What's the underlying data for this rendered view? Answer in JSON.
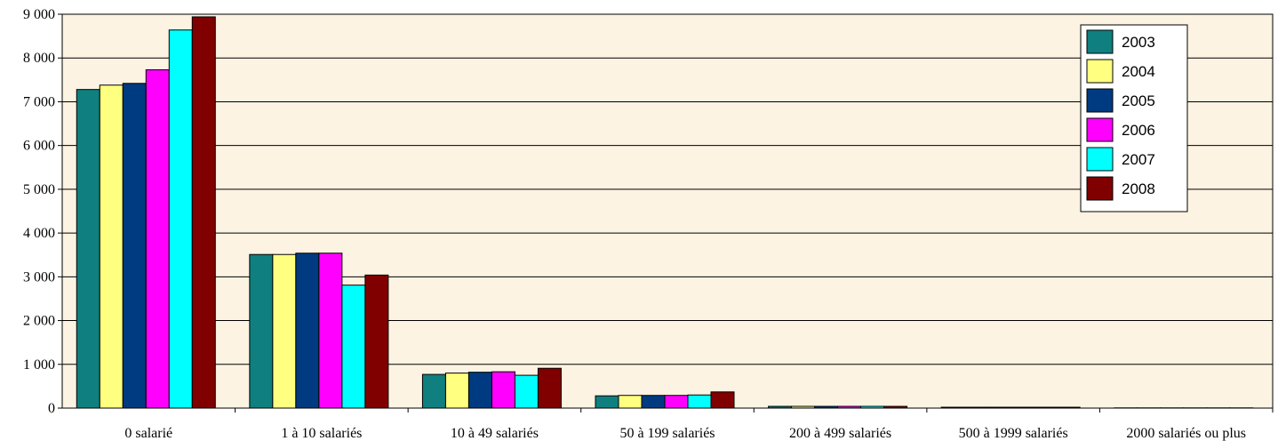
{
  "chart_data": {
    "type": "bar",
    "title": "",
    "xlabel": "",
    "ylabel": "",
    "ylim": [
      0,
      9000
    ],
    "yticks": [
      0,
      1000,
      2000,
      3000,
      4000,
      5000,
      6000,
      7000,
      8000,
      9000
    ],
    "ytick_labels": [
      "0",
      "1 000",
      "2 000",
      "3 000",
      "4 000",
      "5 000",
      "6 000",
      "7 000",
      "8 000",
      "9 000"
    ],
    "grid": true,
    "legend_position": "top-right",
    "plot_background": "#fdf3e2",
    "categories": [
      "0 salarié",
      "1 à 10 salariés",
      "10 à 49 salariés",
      "50 à 199 salariés",
      "200 à 499 salariés",
      "500 à 1999 salariés",
      "2000 salariés ou plus"
    ],
    "series": [
      {
        "name": "2003",
        "color": "#0f7f7f",
        "values": [
          7280,
          3510,
          770,
          280,
          40,
          20,
          5
        ]
      },
      {
        "name": "2004",
        "color": "#ffff80",
        "values": [
          7380,
          3510,
          800,
          290,
          40,
          20,
          5
        ]
      },
      {
        "name": "2005",
        "color": "#003a80",
        "values": [
          7420,
          3540,
          820,
          290,
          40,
          20,
          5
        ]
      },
      {
        "name": "2006",
        "color": "#ff00ff",
        "values": [
          7730,
          3540,
          830,
          290,
          40,
          20,
          5
        ]
      },
      {
        "name": "2007",
        "color": "#00ffff",
        "values": [
          8640,
          2810,
          750,
          300,
          40,
          20,
          5
        ]
      },
      {
        "name": "2008",
        "color": "#800000",
        "values": [
          8940,
          3040,
          910,
          370,
          40,
          20,
          5
        ]
      }
    ]
  }
}
